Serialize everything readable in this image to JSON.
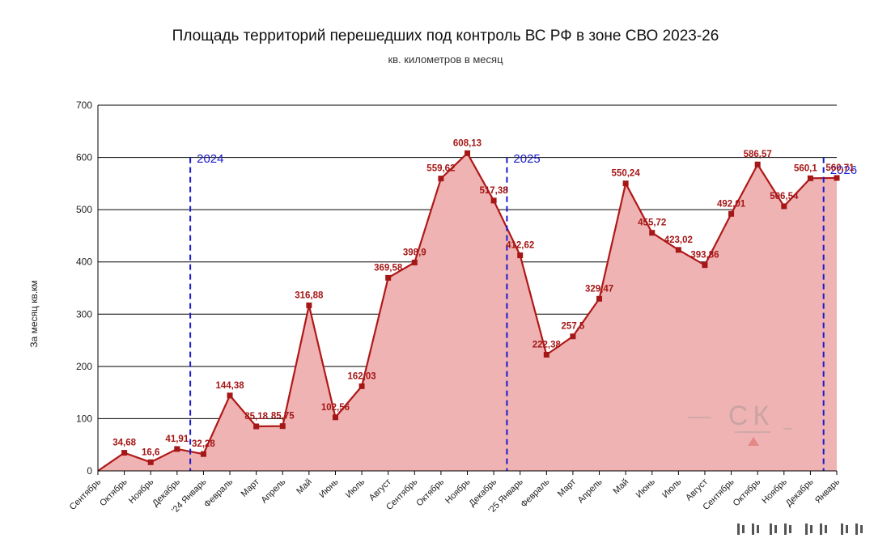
{
  "title": "Площадь территорий перешедших под контроль ВС РФ в зоне СВО 2023-26",
  "subtitle": "кв. километров в месяц",
  "chart_data": {
    "type": "area",
    "title": "Площадь территорий перешедших под контроль ВС РФ в зоне СВО 2023-26",
    "subtitle": "кв. километров в месяц",
    "ylabel": "За месяц кв.км",
    "xlabel": "",
    "ylim": [
      0,
      700
    ],
    "yticks": [
      0,
      100,
      200,
      300,
      400,
      500,
      600,
      700
    ],
    "grid": "horizontal",
    "categories": [
      "Сентябрь",
      "Октябрь",
      "Ноябрь",
      "Декабрь",
      "'24 Январь",
      "Февраль",
      "Март",
      "Апрель",
      "Май",
      "Июнь",
      "Июль",
      "Август",
      "Сентябрь",
      "Октябрь",
      "Ноябрь",
      "Декабрь",
      "'25 Январь",
      "Февраль",
      "Март",
      "Апрель",
      "Май",
      "Июнь",
      "Июль",
      "Август",
      "Сентябрь",
      "Октябрь",
      "Ноябрь",
      "Декабрь",
      "Январь"
    ],
    "values": [
      0,
      34.68,
      16.6,
      41.91,
      32.28,
      144.38,
      85.18,
      85.75,
      316.88,
      102.56,
      162.03,
      369.58,
      398.9,
      559.62,
      608.13,
      517.38,
      412.62,
      222.38,
      257.5,
      329.47,
      550.24,
      455.72,
      423.02,
      393.86,
      492.01,
      586.57,
      506.54,
      560.1,
      560.71
    ],
    "data_labels": [
      "",
      "34,68",
      "16,6",
      "41,91",
      "32,28",
      "144,38",
      "85,18",
      "85,75",
      "316,88",
      "102,56",
      "162,03",
      "369,58",
      "398,9",
      "559,62",
      "608,13",
      "517,38",
      "412,62",
      "222,38",
      "257,5",
      "329,47",
      "550,24",
      "455,72",
      "423,02",
      "393,86",
      "492,01",
      "586,57",
      "506,54",
      "560,1",
      "560,71"
    ],
    "year_markers": [
      {
        "label": "2024",
        "at_index": 3.5
      },
      {
        "label": "2025",
        "at_index": 15.5
      },
      {
        "label": "2026",
        "at_index": 27.5
      }
    ],
    "colors": {
      "line": "#b01818",
      "fill": "#efb3b3",
      "marker": "#a51616",
      "label": "#a51616",
      "year_line": "#1a1acc",
      "year_text": "#1a1acc"
    }
  },
  "watermark": {
    "text": "СК"
  }
}
